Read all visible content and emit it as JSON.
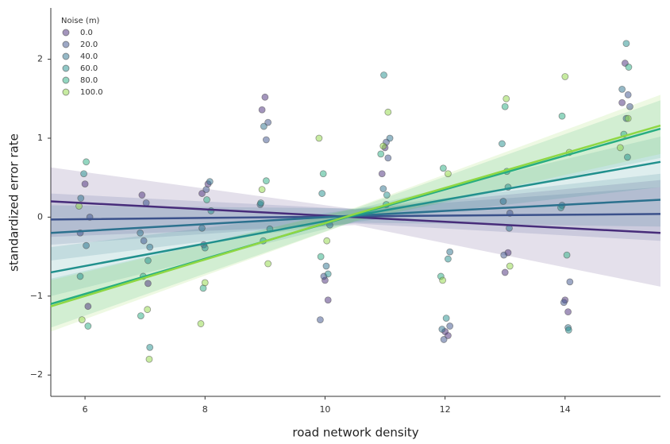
{
  "chart_data": {
    "type": "regplot",
    "x_label": "road network density",
    "y_label": "standardized error rate",
    "legend_title": "Noise (m)",
    "legend": "upper left",
    "xlim": [
      5.43,
      15.59
    ],
    "xticks": [
      6,
      8,
      10,
      12,
      14
    ],
    "ylim": [
      -2.27,
      2.65
    ],
    "yticks": [
      {
        "value": -2,
        "label": "−2"
      },
      {
        "value": -1,
        "label": "−1"
      },
      0,
      1,
      2
    ],
    "fit_x": [
      5.43,
      10.5,
      15.59
    ],
    "series": [
      {
        "name": "0.0",
        "color": "#472c7a",
        "x": [
          6.0,
          6.05,
          6.95,
          7.05,
          7.95,
          8.05,
          9.0,
          8.95,
          10.0,
          10.05,
          11.0,
          10.95,
          12.0,
          12.05,
          13.0,
          13.05,
          14.0,
          14.05,
          15.0,
          14.95
        ],
        "values": [
          0.42,
          -1.13,
          0.28,
          -0.84,
          0.3,
          0.42,
          1.52,
          1.36,
          -0.8,
          -1.05,
          0.88,
          0.55,
          -1.45,
          -1.5,
          -0.7,
          -0.45,
          -1.05,
          -1.2,
          1.95,
          1.45
        ],
        "fit": {
          "values": [
            0.2,
            0.0,
            -0.2
          ],
          "lower": [
            -0.25,
            -0.1,
            -0.88
          ],
          "upper": [
            0.63,
            0.1,
            0.47
          ]
        }
      },
      {
        "name": "20.0",
        "color": "#3b518b",
        "x": [
          6.08,
          5.92,
          7.02,
          6.98,
          8.02,
          7.98,
          9.05,
          9.02,
          9.92,
          9.98,
          11.02,
          11.05,
          12.08,
          11.98,
          13.08,
          12.98,
          14.08,
          13.98,
          15.05,
          15.08
        ],
        "values": [
          0.0,
          -0.2,
          0.18,
          -0.3,
          0.35,
          -0.35,
          1.2,
          0.98,
          -1.3,
          -0.75,
          0.95,
          0.75,
          -1.38,
          -1.55,
          0.05,
          -0.48,
          -0.82,
          -1.08,
          1.55,
          1.4
        ],
        "fit": {
          "values": [
            -0.03,
            0.01,
            0.04
          ],
          "lower": [
            -0.35,
            -0.08,
            -0.3
          ],
          "upper": [
            0.3,
            0.1,
            0.38
          ]
        }
      },
      {
        "name": "40.0",
        "color": "#2c718e",
        "x": [
          5.93,
          6.02,
          6.92,
          7.08,
          8.08,
          7.95,
          8.98,
          8.92,
          10.02,
          10.08,
          10.97,
          11.08,
          11.95,
          12.08,
          12.97,
          13.07,
          14.05,
          13.95,
          14.95,
          15.02
        ],
        "values": [
          0.24,
          -0.36,
          -0.2,
          -0.38,
          0.45,
          -0.14,
          1.15,
          0.16,
          -0.62,
          -0.1,
          0.36,
          1.0,
          -1.42,
          -0.44,
          0.2,
          -0.14,
          -1.4,
          0.15,
          1.62,
          1.25
        ],
        "fit": {
          "values": [
            -0.2,
            0.02,
            0.22
          ],
          "lower": [
            -0.55,
            -0.07,
            -0.12
          ],
          "upper": [
            0.15,
            0.11,
            0.55
          ]
        }
      },
      {
        "name": "60.0",
        "color": "#21908d",
        "x": [
          5.98,
          5.92,
          7.05,
          7.08,
          8.0,
          8.1,
          8.93,
          9.08,
          9.95,
          10.05,
          10.98,
          11.03,
          12.05,
          12.02,
          12.95,
          13.05,
          13.93,
          14.06,
          15.02,
          15.04
        ],
        "values": [
          0.55,
          -0.75,
          -0.55,
          -1.65,
          -0.39,
          0.08,
          0.18,
          -0.15,
          0.3,
          -0.72,
          1.8,
          0.28,
          -0.53,
          -1.28,
          0.93,
          0.38,
          0.12,
          -1.43,
          2.2,
          0.76
        ],
        "fit": {
          "values": [
            -0.7,
            0.02,
            0.7
          ],
          "lower": [
            -1.0,
            -0.06,
            0.38
          ],
          "upper": [
            -0.38,
            0.1,
            1.02
          ]
        }
      },
      {
        "name": "80.0",
        "color": "#27ad81",
        "x": [
          6.02,
          6.05,
          6.97,
          6.93,
          7.97,
          8.03,
          9.02,
          8.97,
          9.97,
          9.93,
          10.93,
          11.02,
          11.97,
          11.93,
          13.0,
          13.03,
          13.95,
          14.03,
          14.98,
          15.06
        ],
        "values": [
          0.7,
          -1.38,
          -0.75,
          -1.25,
          -0.9,
          0.22,
          0.46,
          -0.3,
          0.55,
          -0.5,
          0.8,
          0.16,
          0.62,
          -0.75,
          1.4,
          0.58,
          1.28,
          -0.48,
          1.05,
          1.9
        ],
        "fit": {
          "values": [
            -1.1,
            0.03,
            1.12
          ],
          "lower": [
            -1.4,
            -0.05,
            0.75
          ],
          "upper": [
            -0.78,
            0.11,
            1.48
          ]
        }
      },
      {
        "name": "100.0",
        "color": "#8fd744",
        "x": [
          5.95,
          5.9,
          7.07,
          7.04,
          7.93,
          8.0,
          8.95,
          9.05,
          9.9,
          10.03,
          11.05,
          10.97,
          11.96,
          12.05,
          13.02,
          13.08,
          14.0,
          14.07,
          14.92,
          15.05
        ],
        "values": [
          -1.3,
          0.14,
          -1.8,
          -1.17,
          -1.35,
          -0.83,
          0.35,
          -0.59,
          1.0,
          -0.3,
          1.33,
          0.9,
          -0.8,
          0.55,
          1.5,
          -0.62,
          1.78,
          0.82,
          0.88,
          1.25
        ],
        "fit": {
          "values": [
            -1.13,
            0.04,
            1.16
          ],
          "lower": [
            -1.45,
            -0.05,
            0.8
          ],
          "upper": [
            -0.8,
            0.12,
            1.55
          ]
        }
      }
    ]
  }
}
